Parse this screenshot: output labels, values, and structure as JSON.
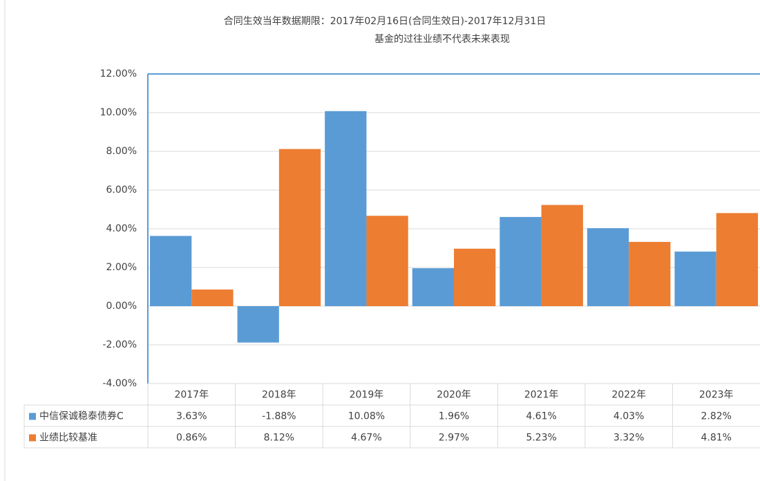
{
  "chart_data": {
    "type": "bar",
    "title": "合同生效当年数据期限：2017年02月16日(合同生效日)-2017年12月31日",
    "subtitle": "基金的过往业绩不代表未来表现",
    "categories": [
      "2017年",
      "2018年",
      "2019年",
      "2020年",
      "2021年",
      "2022年",
      "2023年"
    ],
    "series": [
      {
        "name": "中信保诚稳泰债券C",
        "color": "#5b9bd5",
        "values": [
          3.63,
          -1.88,
          10.08,
          1.96,
          4.61,
          4.03,
          2.82
        ],
        "value_labels": [
          "3.63%",
          "-1.88%",
          "10.08%",
          "1.96%",
          "4.61%",
          "4.03%",
          "2.82%"
        ]
      },
      {
        "name": "业绩比较基准",
        "color": "#ed7d31",
        "values": [
          0.86,
          8.12,
          4.67,
          2.97,
          5.23,
          3.32,
          4.81
        ],
        "value_labels": [
          "0.86%",
          "8.12%",
          "4.67%",
          "2.97%",
          "5.23%",
          "3.32%",
          "4.81%"
        ]
      }
    ],
    "ylim": [
      -4,
      12
    ],
    "yticks": [
      {
        "value": -4,
        "label": "-4.00%"
      },
      {
        "value": -2,
        "label": "-2.00%"
      },
      {
        "value": 0,
        "label": "0.00%"
      },
      {
        "value": 2,
        "label": "2.00%"
      },
      {
        "value": 4,
        "label": "4.00%"
      },
      {
        "value": 6,
        "label": "6.00%"
      },
      {
        "value": 8,
        "label": "8.00%"
      },
      {
        "value": 10,
        "label": "10.00%"
      },
      {
        "value": 12,
        "label": "12.00%"
      }
    ],
    "grid": true
  }
}
